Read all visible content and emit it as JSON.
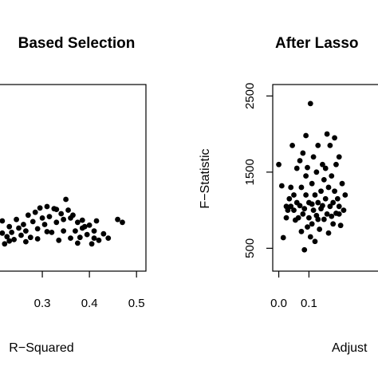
{
  "chart_data": [
    {
      "type": "scatter",
      "title": "Based Selection",
      "xlabel": "R−Squared",
      "ylabel": "",
      "xlim": [
        0.2,
        0.52
      ],
      "ylim": [
        0,
        2600
      ],
      "x_ticks": [
        "0.3",
        "0.4",
        "0.5"
      ],
      "x_tick_values": [
        0.3,
        0.4,
        0.5
      ],
      "y_ticks": [],
      "grid": false,
      "points": [
        {
          "x": 0.2,
          "y": 520
        },
        {
          "x": 0.205,
          "y": 600
        },
        {
          "x": 0.21,
          "y": 450
        },
        {
          "x": 0.215,
          "y": 530
        },
        {
          "x": 0.22,
          "y": 380
        },
        {
          "x": 0.225,
          "y": 480
        },
        {
          "x": 0.23,
          "y": 620
        },
        {
          "x": 0.235,
          "y": 540
        },
        {
          "x": 0.24,
          "y": 440
        },
        {
          "x": 0.245,
          "y": 720
        },
        {
          "x": 0.25,
          "y": 600
        },
        {
          "x": 0.255,
          "y": 500
        },
        {
          "x": 0.26,
          "y": 650
        },
        {
          "x": 0.265,
          "y": 560
        },
        {
          "x": 0.27,
          "y": 780
        },
        {
          "x": 0.275,
          "y": 470
        },
        {
          "x": 0.28,
          "y": 690
        },
        {
          "x": 0.285,
          "y": 820
        },
        {
          "x": 0.29,
          "y": 590
        },
        {
          "x": 0.295,
          "y": 880
        },
        {
          "x": 0.3,
          "y": 740
        },
        {
          "x": 0.305,
          "y": 650
        },
        {
          "x": 0.31,
          "y": 900
        },
        {
          "x": 0.315,
          "y": 760
        },
        {
          "x": 0.32,
          "y": 540
        },
        {
          "x": 0.325,
          "y": 870
        },
        {
          "x": 0.33,
          "y": 680
        },
        {
          "x": 0.335,
          "y": 430
        },
        {
          "x": 0.34,
          "y": 800
        },
        {
          "x": 0.345,
          "y": 720
        },
        {
          "x": 0.35,
          "y": 1000
        },
        {
          "x": 0.355,
          "y": 850
        },
        {
          "x": 0.36,
          "y": 460
        },
        {
          "x": 0.365,
          "y": 780
        },
        {
          "x": 0.37,
          "y": 560
        },
        {
          "x": 0.375,
          "y": 680
        },
        {
          "x": 0.38,
          "y": 470
        },
        {
          "x": 0.385,
          "y": 710
        },
        {
          "x": 0.39,
          "y": 620
        },
        {
          "x": 0.395,
          "y": 510
        },
        {
          "x": 0.4,
          "y": 640
        },
        {
          "x": 0.405,
          "y": 380
        },
        {
          "x": 0.41,
          "y": 560
        },
        {
          "x": 0.415,
          "y": 700
        },
        {
          "x": 0.42,
          "y": 430
        },
        {
          "x": 0.43,
          "y": 520
        },
        {
          "x": 0.44,
          "y": 460
        },
        {
          "x": 0.46,
          "y": 720
        },
        {
          "x": 0.47,
          "y": 680
        },
        {
          "x": 0.29,
          "y": 450
        },
        {
          "x": 0.31,
          "y": 550
        },
        {
          "x": 0.33,
          "y": 860
        },
        {
          "x": 0.36,
          "y": 740
        },
        {
          "x": 0.375,
          "y": 390
        },
        {
          "x": 0.41,
          "y": 460
        },
        {
          "x": 0.215,
          "y": 700
        },
        {
          "x": 0.23,
          "y": 420
        },
        {
          "x": 0.265,
          "y": 410
        },
        {
          "x": 0.345,
          "y": 560
        },
        {
          "x": 0.385,
          "y": 600
        }
      ]
    },
    {
      "type": "scatter",
      "title": "After Lasso",
      "xlabel": "Adjust",
      "ylabel": "F−Statistic",
      "xlim": [
        -0.02,
        0.35
      ],
      "ylim": [
        200,
        2650
      ],
      "x_ticks": [
        "0.0",
        "0.1"
      ],
      "x_tick_values": [
        0.0,
        0.1
      ],
      "y_ticks": [
        "500",
        "1500",
        "2500"
      ],
      "y_tick_values": [
        500,
        1500,
        2500
      ],
      "grid": false,
      "points": [
        {
          "x": 0.0,
          "y": 1600
        },
        {
          "x": 0.01,
          "y": 1320
        },
        {
          "x": 0.015,
          "y": 640
        },
        {
          "x": 0.025,
          "y": 900
        },
        {
          "x": 0.03,
          "y": 1000
        },
        {
          "x": 0.035,
          "y": 1150
        },
        {
          "x": 0.04,
          "y": 1050
        },
        {
          "x": 0.045,
          "y": 1850
        },
        {
          "x": 0.05,
          "y": 1200
        },
        {
          "x": 0.05,
          "y": 1000
        },
        {
          "x": 0.055,
          "y": 870
        },
        {
          "x": 0.06,
          "y": 1100
        },
        {
          "x": 0.065,
          "y": 900
        },
        {
          "x": 0.07,
          "y": 1650
        },
        {
          "x": 0.075,
          "y": 720
        },
        {
          "x": 0.075,
          "y": 1300
        },
        {
          "x": 0.08,
          "y": 950
        },
        {
          "x": 0.08,
          "y": 1750
        },
        {
          "x": 0.085,
          "y": 1020
        },
        {
          "x": 0.085,
          "y": 480
        },
        {
          "x": 0.09,
          "y": 1450
        },
        {
          "x": 0.09,
          "y": 1980
        },
        {
          "x": 0.095,
          "y": 780
        },
        {
          "x": 0.095,
          "y": 1560
        },
        {
          "x": 0.1,
          "y": 1100
        },
        {
          "x": 0.1,
          "y": 900
        },
        {
          "x": 0.105,
          "y": 2400
        },
        {
          "x": 0.105,
          "y": 650
        },
        {
          "x": 0.11,
          "y": 1350
        },
        {
          "x": 0.11,
          "y": 820
        },
        {
          "x": 0.115,
          "y": 1000
        },
        {
          "x": 0.115,
          "y": 1700
        },
        {
          "x": 0.12,
          "y": 1200
        },
        {
          "x": 0.12,
          "y": 590
        },
        {
          "x": 0.125,
          "y": 930
        },
        {
          "x": 0.125,
          "y": 1500
        },
        {
          "x": 0.13,
          "y": 1100
        },
        {
          "x": 0.13,
          "y": 1850
        },
        {
          "x": 0.135,
          "y": 750
        },
        {
          "x": 0.14,
          "y": 1250
        },
        {
          "x": 0.14,
          "y": 1020
        },
        {
          "x": 0.145,
          "y": 1600
        },
        {
          "x": 0.15,
          "y": 880
        },
        {
          "x": 0.15,
          "y": 1400
        },
        {
          "x": 0.155,
          "y": 1150
        },
        {
          "x": 0.16,
          "y": 2000
        },
        {
          "x": 0.16,
          "y": 950
        },
        {
          "x": 0.165,
          "y": 1300
        },
        {
          "x": 0.165,
          "y": 700
        },
        {
          "x": 0.17,
          "y": 1850
        },
        {
          "x": 0.17,
          "y": 1050
        },
        {
          "x": 0.175,
          "y": 1450
        },
        {
          "x": 0.18,
          "y": 1100
        },
        {
          "x": 0.18,
          "y": 820
        },
        {
          "x": 0.185,
          "y": 1250
        },
        {
          "x": 0.19,
          "y": 960
        },
        {
          "x": 0.19,
          "y": 1600
        },
        {
          "x": 0.195,
          "y": 1150
        },
        {
          "x": 0.2,
          "y": 1050
        },
        {
          "x": 0.2,
          "y": 1700
        },
        {
          "x": 0.205,
          "y": 800
        },
        {
          "x": 0.21,
          "y": 1350
        },
        {
          "x": 0.215,
          "y": 1000
        },
        {
          "x": 0.22,
          "y": 1200
        },
        {
          "x": 0.06,
          "y": 1550
        },
        {
          "x": 0.07,
          "y": 1060
        },
        {
          "x": 0.09,
          "y": 1200
        },
        {
          "x": 0.11,
          "y": 1080
        },
        {
          "x": 0.13,
          "y": 880
        },
        {
          "x": 0.145,
          "y": 1060
        },
        {
          "x": 0.155,
          "y": 1550
        },
        {
          "x": 0.175,
          "y": 920
        },
        {
          "x": 0.185,
          "y": 1950
        },
        {
          "x": 0.2,
          "y": 950
        },
        {
          "x": 0.04,
          "y": 1300
        },
        {
          "x": 0.025,
          "y": 1050
        }
      ]
    }
  ]
}
